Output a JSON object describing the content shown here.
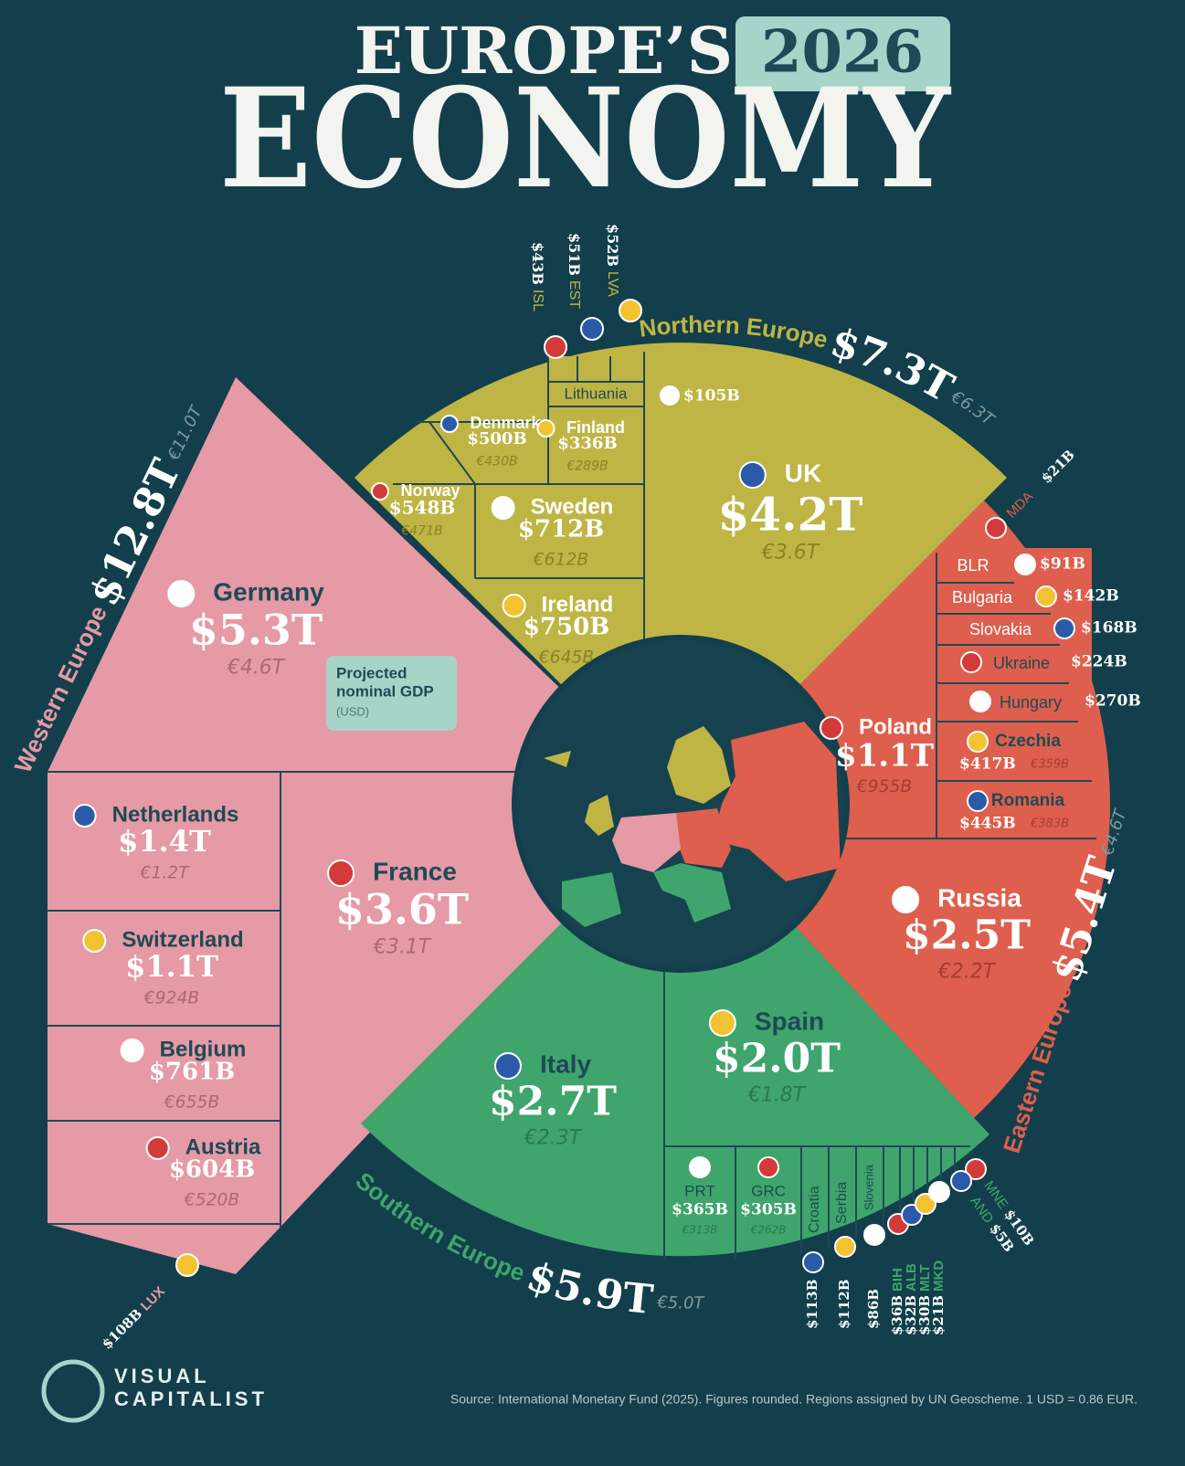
{
  "header": {
    "title_line1": "EUROPE’S",
    "year": "2026",
    "title_line2": "ECONOMY"
  },
  "legend_note": {
    "line1": "Projected",
    "line2": "nominal GDP",
    "unit": "(USD)"
  },
  "regions": [
    {
      "name": "Western Europe",
      "usd": "$12.8T",
      "eur": "€11.0T",
      "countries": [
        {
          "name": "Germany",
          "usd": "$5.3T",
          "eur": "€4.6T"
        },
        {
          "name": "France",
          "usd": "$3.6T",
          "eur": "€3.1T"
        },
        {
          "name": "Netherlands",
          "usd": "$1.4T",
          "eur": "€1.2T"
        },
        {
          "name": "Switzerland",
          "usd": "$1.1T",
          "eur": "€924B"
        },
        {
          "name": "Belgium",
          "usd": "$761B",
          "eur": "€655B"
        },
        {
          "name": "Austria",
          "usd": "$604B",
          "eur": "€520B"
        },
        {
          "name": "LUX",
          "usd": "$108B"
        }
      ]
    },
    {
      "name": "Northern Europe",
      "usd": "$7.3T",
      "eur": "€6.3T",
      "countries": [
        {
          "name": "UK",
          "usd": "$4.2T",
          "eur": "€3.6T"
        },
        {
          "name": "Ireland",
          "usd": "$750B",
          "eur": "€645B"
        },
        {
          "name": "Sweden",
          "usd": "$712B",
          "eur": "€612B"
        },
        {
          "name": "Norway",
          "usd": "$548B",
          "eur": "€471B"
        },
        {
          "name": "Denmark",
          "usd": "$500B",
          "eur": "€430B"
        },
        {
          "name": "Finland",
          "usd": "$336B",
          "eur": "€289B"
        },
        {
          "name": "Lithuania",
          "usd": "$105B"
        },
        {
          "name": "ISL",
          "usd": "$43B"
        },
        {
          "name": "EST",
          "usd": "$51B"
        },
        {
          "name": "LVA",
          "usd": "$52B"
        }
      ]
    },
    {
      "name": "Eastern Europe",
      "usd": "$5.4T",
      "eur": "€4.6T",
      "countries": [
        {
          "name": "Russia",
          "usd": "$2.5T",
          "eur": "€2.2T"
        },
        {
          "name": "Poland",
          "usd": "$1.1T",
          "eur": "€955B"
        },
        {
          "name": "Romania",
          "usd": "$445B",
          "eur": "€383B"
        },
        {
          "name": "Czechia",
          "usd": "$417B",
          "eur": "€359B"
        },
        {
          "name": "Hungary",
          "usd": "$270B"
        },
        {
          "name": "Ukraine",
          "usd": "$224B"
        },
        {
          "name": "Slovakia",
          "usd": "$168B"
        },
        {
          "name": "Bulgaria",
          "usd": "$142B"
        },
        {
          "name": "BLR",
          "usd": "$91B"
        },
        {
          "name": "MDA",
          "usd": "$21B"
        }
      ]
    },
    {
      "name": "Southern Europe",
      "usd": "$5.9T",
      "eur": "€5.0T",
      "countries": [
        {
          "name": "Italy",
          "usd": "$2.7T",
          "eur": "€2.3T"
        },
        {
          "name": "Spain",
          "usd": "$2.0T",
          "eur": "€1.8T"
        },
        {
          "name": "PRT",
          "usd": "$365B",
          "eur": "€313B"
        },
        {
          "name": "GRC",
          "usd": "$305B",
          "eur": "€262B"
        },
        {
          "name": "Croatia",
          "usd": "$113B"
        },
        {
          "name": "Serbia",
          "usd": "$112B"
        },
        {
          "name": "Slovenia",
          "usd": "$86B"
        },
        {
          "name": "BIH",
          "usd": "$36B"
        },
        {
          "name": "ALB",
          "usd": "$32B"
        },
        {
          "name": "MLT",
          "usd": "$30B"
        },
        {
          "name": "MKD",
          "usd": "$21B"
        },
        {
          "name": "MNE",
          "usd": "$10B"
        },
        {
          "name": "AND",
          "usd": "$5B"
        }
      ]
    }
  ],
  "source": "Source: International Monetary Fund (2025). Figures rounded. Regions assigned by UN Geoscheme. 1 USD = 0.86 EUR.",
  "brand": {
    "line1": "VISUAL",
    "line2": "CAPITALIST"
  }
}
